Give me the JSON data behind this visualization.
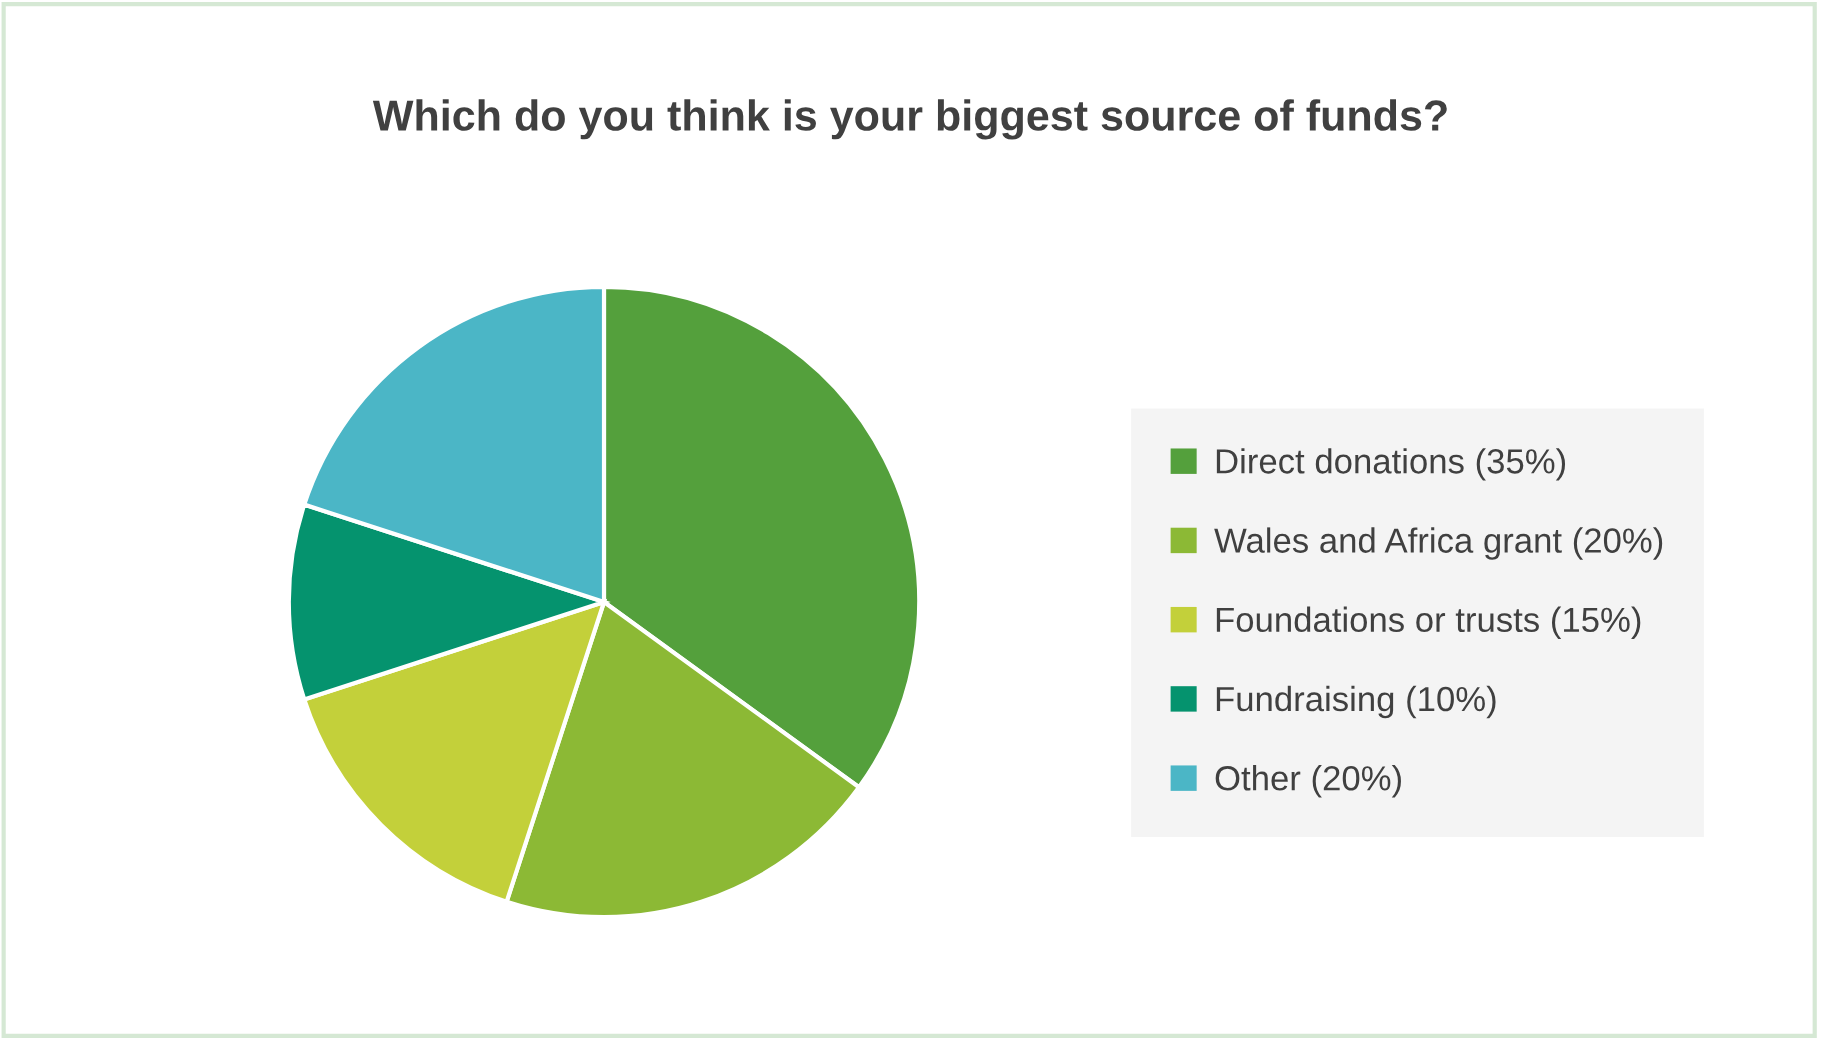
{
  "chart_data": {
    "type": "pie",
    "title": "Which do you think is your biggest source of funds?",
    "categories": [
      "Direct donations (35%)",
      "Wales and Africa grant (20%)",
      "Foundations or trusts (15%)",
      "Fundraising (10%)",
      "Other (20%)"
    ],
    "values": [
      35,
      20,
      15,
      10,
      20
    ],
    "colors": [
      "#54a03c",
      "#8cb935",
      "#c3d03a",
      "#05936e",
      "#4bb6c6"
    ],
    "legend": "right"
  }
}
